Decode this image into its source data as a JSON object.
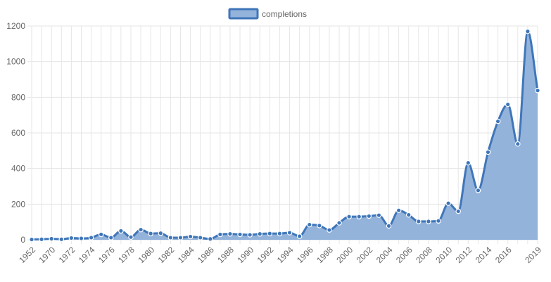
{
  "colors": {
    "series_stroke": "#3f76b9",
    "series_fill": "#94b3db",
    "point_fill": "#3f76b9",
    "point_stroke": "#ffffff",
    "grid": "#e6e6e6",
    "tick_text": "#666666"
  },
  "chart_data": {
    "type": "area",
    "title": "",
    "xlabel": "",
    "ylabel": "",
    "ylim": [
      0,
      1200
    ],
    "yticks": [
      0,
      200,
      400,
      600,
      800,
      1000,
      1200
    ],
    "grid": true,
    "legend": {
      "position": "top-center"
    },
    "categories": [
      "1952",
      "1969",
      "1970",
      "1971",
      "1972",
      "1973",
      "1974",
      "1975",
      "1976",
      "1977",
      "1978",
      "1979",
      "1980",
      "1981",
      "1982",
      "1983",
      "1984",
      "1985",
      "1986",
      "1987",
      "1988",
      "1989",
      "1990",
      "1991",
      "1992",
      "1993",
      "1994",
      "1995",
      "1996",
      "1997",
      "1998",
      "1999",
      "2000",
      "2001",
      "2002",
      "2003",
      "2004",
      "2005",
      "2006",
      "2007",
      "2008",
      "2009",
      "2010",
      "2011",
      "2012",
      "2013",
      "2014",
      "2015",
      "2016",
      "2017",
      "2018",
      "2019"
    ],
    "xtick_labels": [
      "1952",
      "1970",
      "1972",
      "1974",
      "1976",
      "1978",
      "1980",
      "1982",
      "1984",
      "1986",
      "1988",
      "1990",
      "1992",
      "1994",
      "1996",
      "1998",
      "2000",
      "2002",
      "2004",
      "2006",
      "2008",
      "2010",
      "2012",
      "2014",
      "2016",
      "2019"
    ],
    "series": [
      {
        "name": "completions",
        "values": [
          2,
          3,
          6,
          3,
          10,
          8,
          12,
          30,
          12,
          50,
          15,
          57,
          35,
          37,
          12,
          12,
          18,
          12,
          5,
          30,
          33,
          30,
          28,
          33,
          35,
          35,
          40,
          20,
          85,
          80,
          55,
          95,
          130,
          130,
          133,
          138,
          78,
          165,
          140,
          103,
          103,
          106,
          205,
          160,
          432,
          277,
          492,
          665,
          760,
          538,
          1170,
          838
        ]
      }
    ]
  }
}
